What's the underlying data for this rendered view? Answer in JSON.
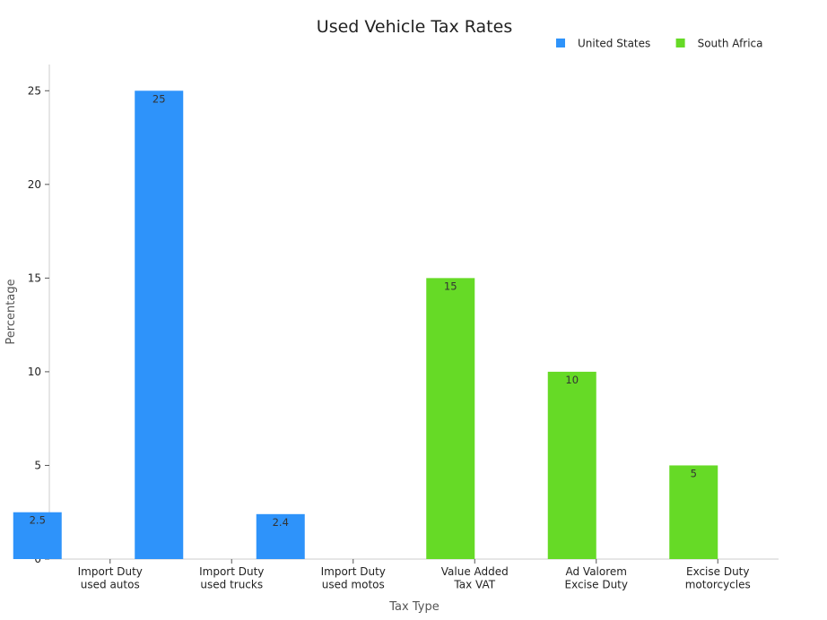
{
  "chart_data": {
    "type": "bar",
    "title": "Used Vehicle Tax Rates",
    "xlabel": "Tax Type",
    "ylabel": "Percentage",
    "categories": [
      [
        "Import Duty",
        "used autos"
      ],
      [
        "Import Duty",
        "used trucks"
      ],
      [
        "Import Duty",
        "used motos"
      ],
      [
        "Value Added",
        "Tax VAT"
      ],
      [
        "Ad Valorem",
        "Excise Duty"
      ],
      [
        "Excise Duty",
        "motorcycles"
      ]
    ],
    "series": [
      {
        "name": "United States",
        "color": "#2E93FA",
        "values": [
          2.5,
          25,
          2.4,
          null,
          null,
          null
        ]
      },
      {
        "name": "South Africa",
        "color": "#66DA26",
        "values": [
          null,
          null,
          null,
          15,
          10,
          5
        ]
      }
    ],
    "ylim": [
      0,
      26.4
    ],
    "yticks": [
      0,
      5,
      10,
      15,
      20,
      25
    ],
    "grid": false,
    "legend_position": "top-right"
  }
}
